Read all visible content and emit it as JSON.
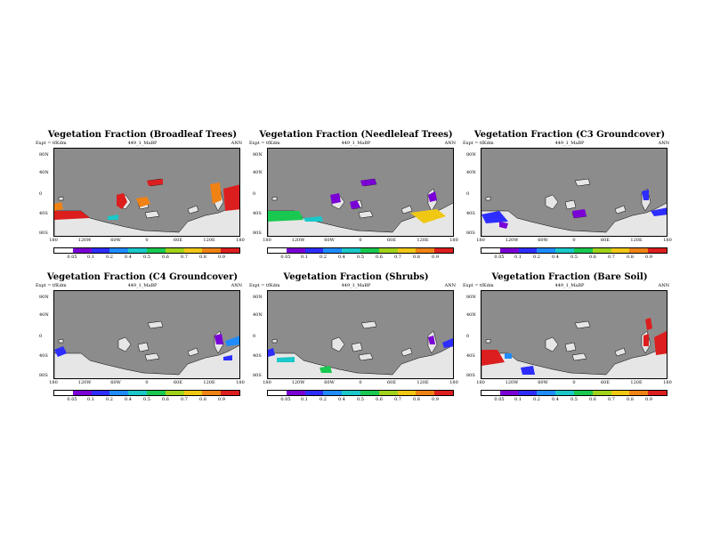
{
  "colors": {
    "ocean": "#8c8c8c",
    "land": "#e6e6e6",
    "scale": [
      "#ffffff",
      "#7a00d6",
      "#2d2dff",
      "#1e8cff",
      "#19c8c8",
      "#19c850",
      "#a0d219",
      "#f0c814",
      "#f08214",
      "#dc1e1e"
    ]
  },
  "lat_labels": [
    "80N",
    "40N",
    "0",
    "40S",
    "80S"
  ],
  "lon_labels": [
    "180",
    "120W",
    "60W",
    "0",
    "60E",
    "120E",
    "180"
  ],
  "panels": [
    {
      "title": "Vegetation Fraction (Broadleaf Trees)",
      "expt": "Expt = tfKdm",
      "center": "449_1_MaBP",
      "season": "ANN",
      "colorbar_labels": [
        "0.05",
        "0.1",
        "0.2",
        "0.4",
        "0.5",
        "0.6",
        "0.7",
        "0.8",
        "0.9"
      ]
    },
    {
      "title": "Vegetation Fraction (Needleleaf Trees)",
      "expt": "Expt = tfKdm",
      "center": "449_1_MaBP",
      "season": "ANN",
      "colorbar_labels": [
        "0.05",
        "0.1",
        "0.2",
        "0.4",
        "0.5",
        "0.6",
        "0.7",
        "0.8",
        "0.9"
      ]
    },
    {
      "title": "Vegetation Fraction (C3 Groundcover)",
      "expt": "Expt = tfKdm",
      "center": "449_1_MaBP",
      "season": "ANN",
      "colorbar_labels": [
        "0.05",
        "0.1",
        "0.2",
        "0.4",
        "0.5",
        "0.6",
        "0.7",
        "0.8",
        "0.9"
      ]
    },
    {
      "title": "Vegetation Fraction (C4 Groundcover)",
      "expt": "Expt = tfKdm",
      "center": "449_1_MaBP",
      "season": "ANN",
      "colorbar_labels": [
        "0.05",
        "0.1",
        "0.2",
        "0.4",
        "0.5",
        "0.6",
        "0.7",
        "0.8",
        "0.9"
      ]
    },
    {
      "title": "Vegetation Fraction (Shrubs)",
      "expt": "Expt = tfKdm",
      "center": "449_1_MaBP",
      "season": "ANN",
      "colorbar_labels": [
        "0.05",
        "0.1",
        "0.2",
        "0.4",
        "0.5",
        "0.6",
        "0.7",
        "0.8",
        "0.9"
      ]
    },
    {
      "title": "Vegetation Fraction (Bare Soil)",
      "expt": "Expt = tfKdm",
      "center": "449_1_MaBP",
      "season": "ANN",
      "colorbar_labels": [
        "0.05",
        "0.1",
        "0.2",
        "0.4",
        "0.5",
        "0.6",
        "0.7",
        "0.8",
        "0.9"
      ]
    }
  ]
}
